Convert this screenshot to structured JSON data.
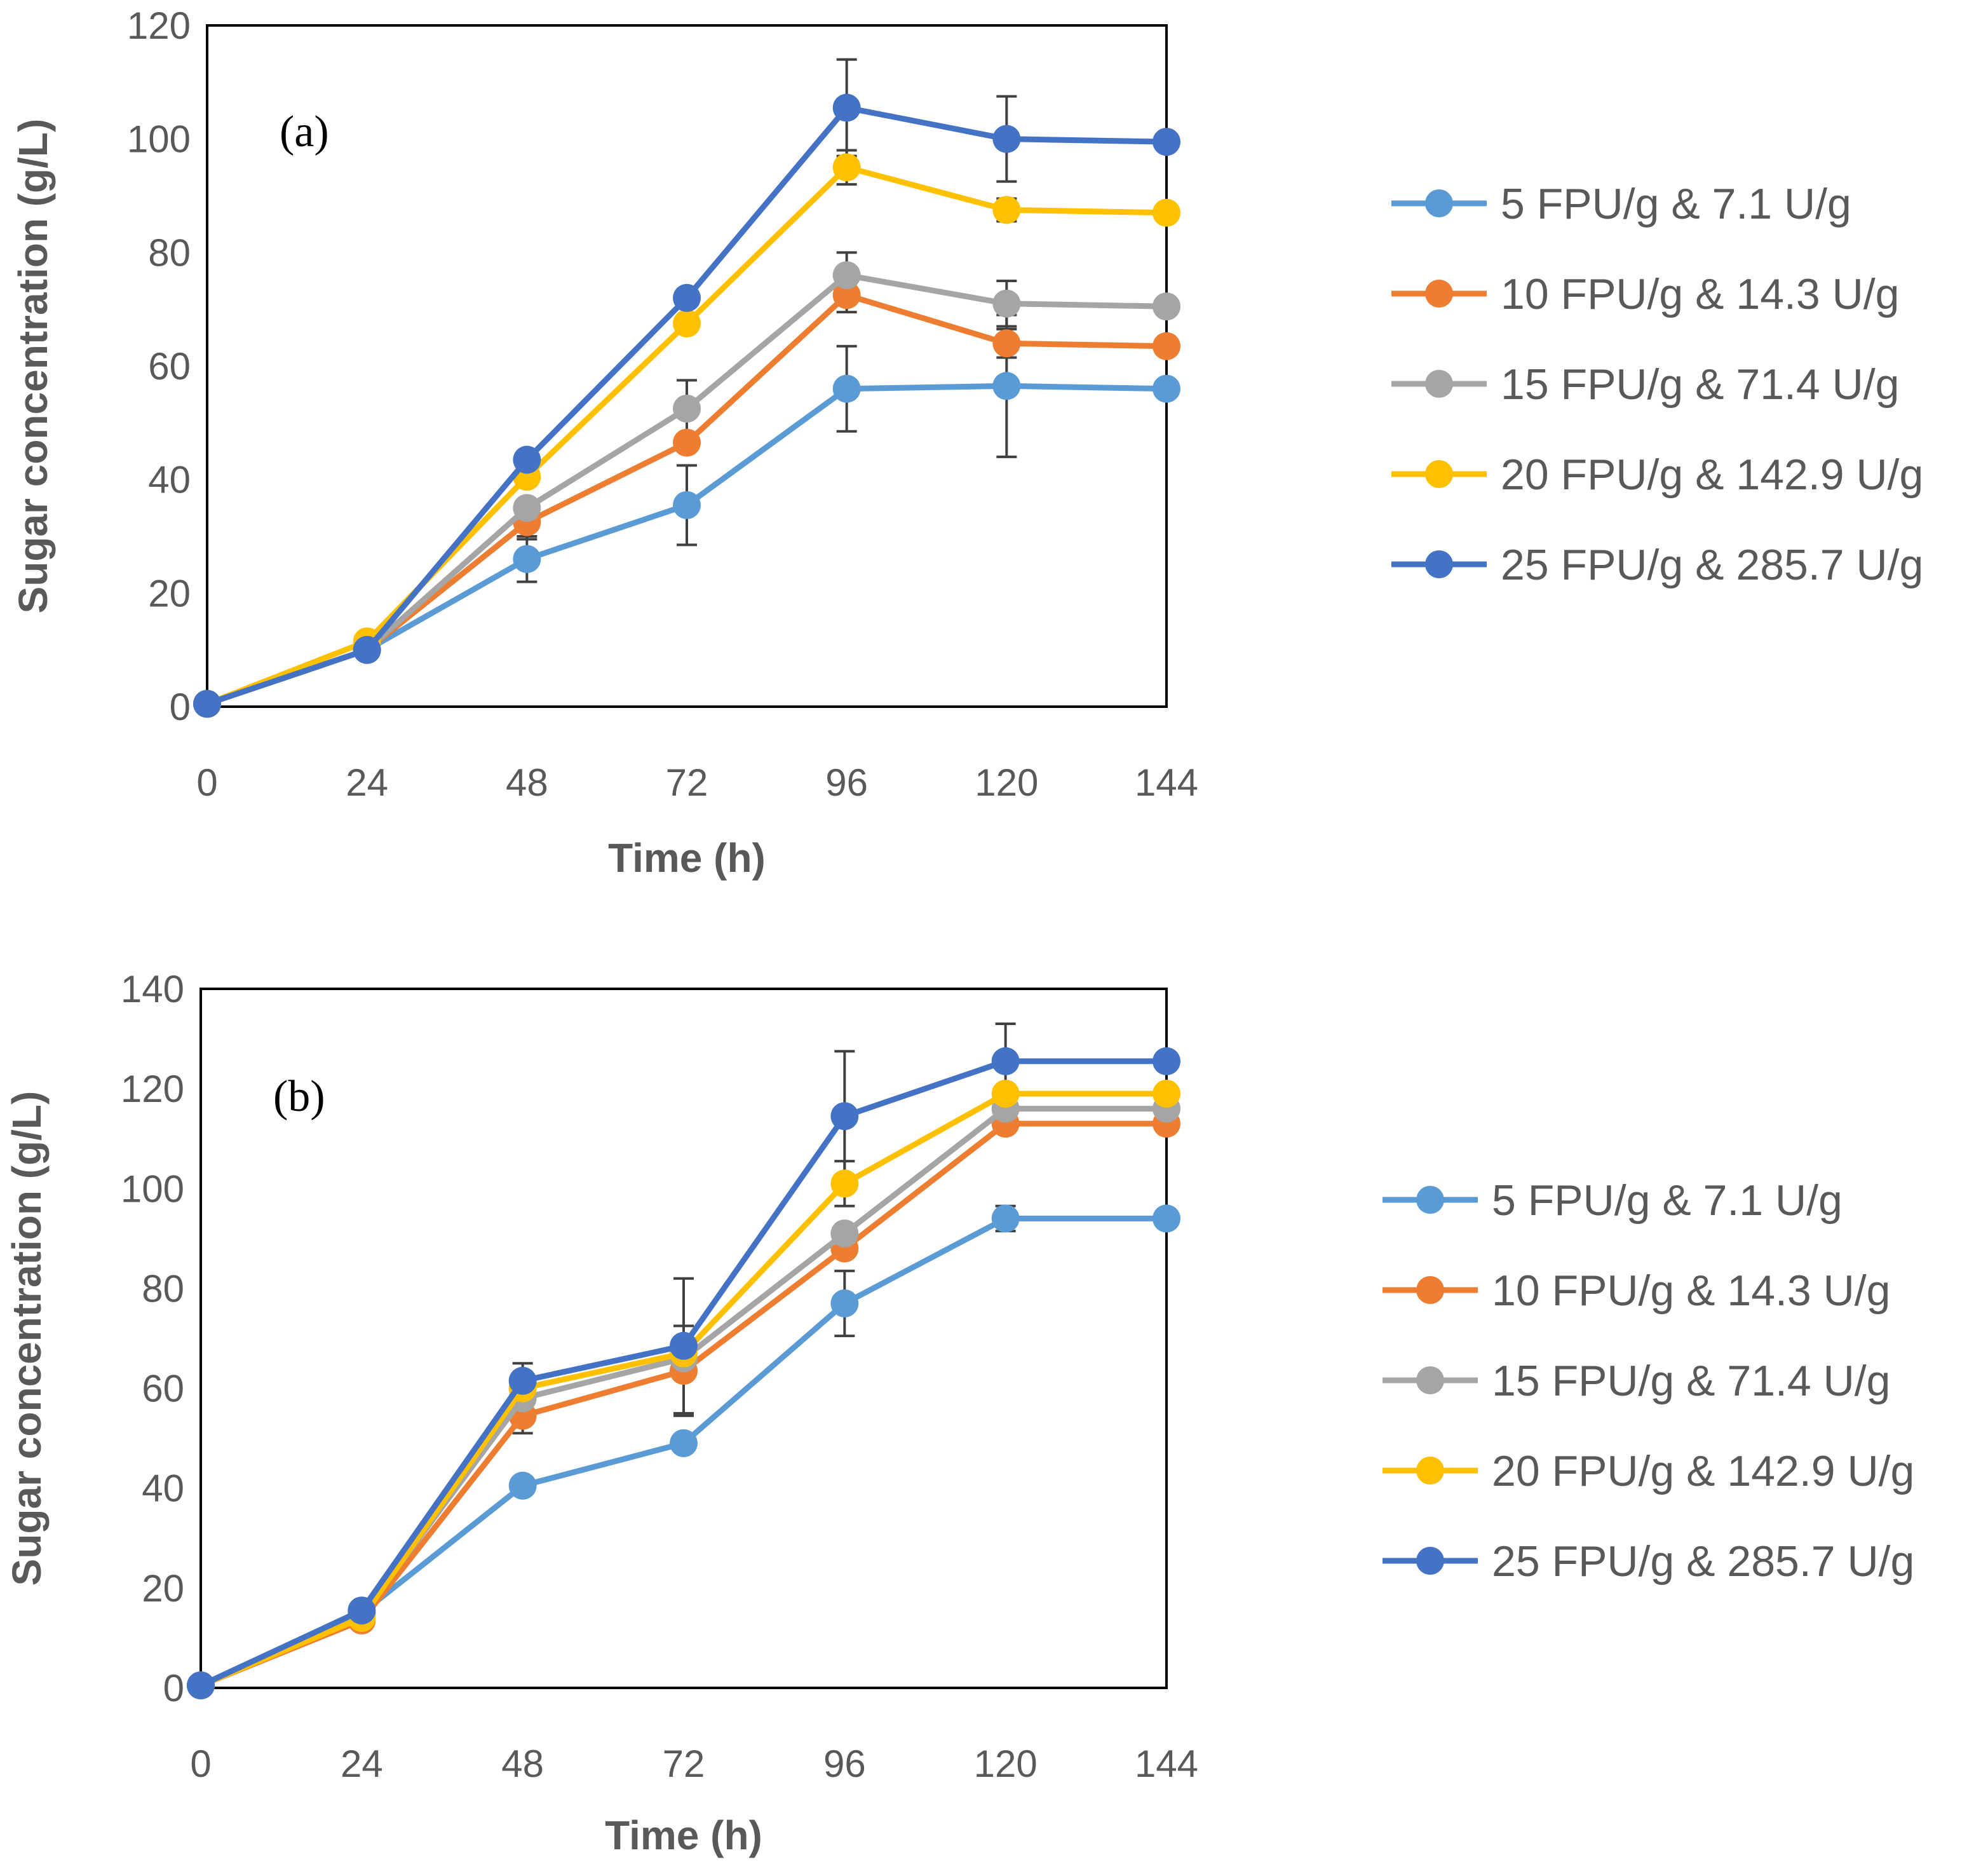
{
  "chart_data": [
    {
      "type": "line",
      "panel_label": "(a)",
      "xlabel": "Time (h)",
      "ylabel": "Sugar concentration (g/L)",
      "x": [
        0,
        24,
        48,
        72,
        96,
        120,
        144
      ],
      "xlim": [
        0,
        144
      ],
      "ylim": [
        0,
        120
      ],
      "yticks": [
        0,
        20,
        40,
        60,
        80,
        100,
        120
      ],
      "legend_position": "right",
      "series": [
        {
          "name": "5 FPU/g & 7.1 U/g",
          "color": "#5B9BD5",
          "values": [
            0.5,
            10,
            26,
            35.5,
            56,
            56.5,
            56
          ],
          "errors": [
            0,
            0,
            4,
            7,
            7.5,
            12.5,
            0
          ]
        },
        {
          "name": "10 FPU/g & 14.3 U/g",
          "color": "#ED7D31",
          "values": [
            0.5,
            10,
            32.5,
            46.5,
            72.5,
            64,
            63.5
          ],
          "errors": [
            0,
            0,
            3,
            0,
            3,
            2.5,
            0
          ]
        },
        {
          "name": "15 FPU/g & 71.4 U/g",
          "color": "#A5A5A5",
          "values": [
            0.5,
            10,
            35,
            52.5,
            76,
            71,
            70.5
          ],
          "errors": [
            0,
            0,
            0,
            5,
            4,
            4,
            0
          ]
        },
        {
          "name": "20 FPU/g & 142.9 U/g",
          "color": "#FFC000",
          "values": [
            0.5,
            11.5,
            40.5,
            67.5,
            95,
            87.5,
            87
          ],
          "errors": [
            0,
            0,
            0,
            0,
            3,
            2,
            0
          ]
        },
        {
          "name": "25 FPU/g & 285.7 U/g",
          "color": "#4472C4",
          "values": [
            0.5,
            10,
            43.5,
            72,
            105.5,
            100,
            99.5
          ],
          "errors": [
            0,
            0,
            0,
            0,
            8.5,
            7.5,
            0
          ]
        }
      ]
    },
    {
      "type": "line",
      "panel_label": "(b)",
      "xlabel": "Time (h)",
      "ylabel": "Sugar concentration (g/L)",
      "x": [
        0,
        24,
        48,
        72,
        96,
        120,
        144
      ],
      "xlim": [
        0,
        144
      ],
      "ylim": [
        0,
        140
      ],
      "yticks": [
        0,
        20,
        40,
        60,
        80,
        100,
        120,
        140
      ],
      "legend_position": "right",
      "series": [
        {
          "name": "5 FPU/g & 7.1 U/g",
          "color": "#5B9BD5",
          "values": [
            0.5,
            15,
            40.5,
            49,
            77,
            94,
            94
          ],
          "errors": [
            0,
            0,
            0,
            0,
            6.5,
            2.5,
            0
          ]
        },
        {
          "name": "10 FPU/g & 14.3 U/g",
          "color": "#ED7D31",
          "values": [
            0.5,
            13.5,
            54.5,
            63.5,
            88,
            113,
            113
          ],
          "errors": [
            0,
            0,
            3.5,
            9,
            0,
            0,
            0
          ]
        },
        {
          "name": "15 FPU/g & 71.4 U/g",
          "color": "#A5A5A5",
          "values": [
            0.5,
            14.5,
            58,
            66,
            91,
            116,
            116
          ],
          "errors": [
            0,
            0,
            0,
            0,
            0,
            0,
            0
          ]
        },
        {
          "name": "20 FPU/g & 142.9 U/g",
          "color": "#FFC000",
          "values": [
            0.5,
            14,
            60,
            67,
            101,
            119,
            119
          ],
          "errors": [
            0,
            0,
            0,
            0,
            4.5,
            0,
            0
          ]
        },
        {
          "name": "25 FPU/g & 285.7 U/g",
          "color": "#4472C4",
          "values": [
            0.5,
            15.5,
            61.5,
            68.5,
            114.5,
            125.5,
            125.5
          ],
          "errors": [
            0,
            0,
            3.5,
            13.5,
            13,
            7.5,
            0
          ]
        }
      ]
    }
  ]
}
